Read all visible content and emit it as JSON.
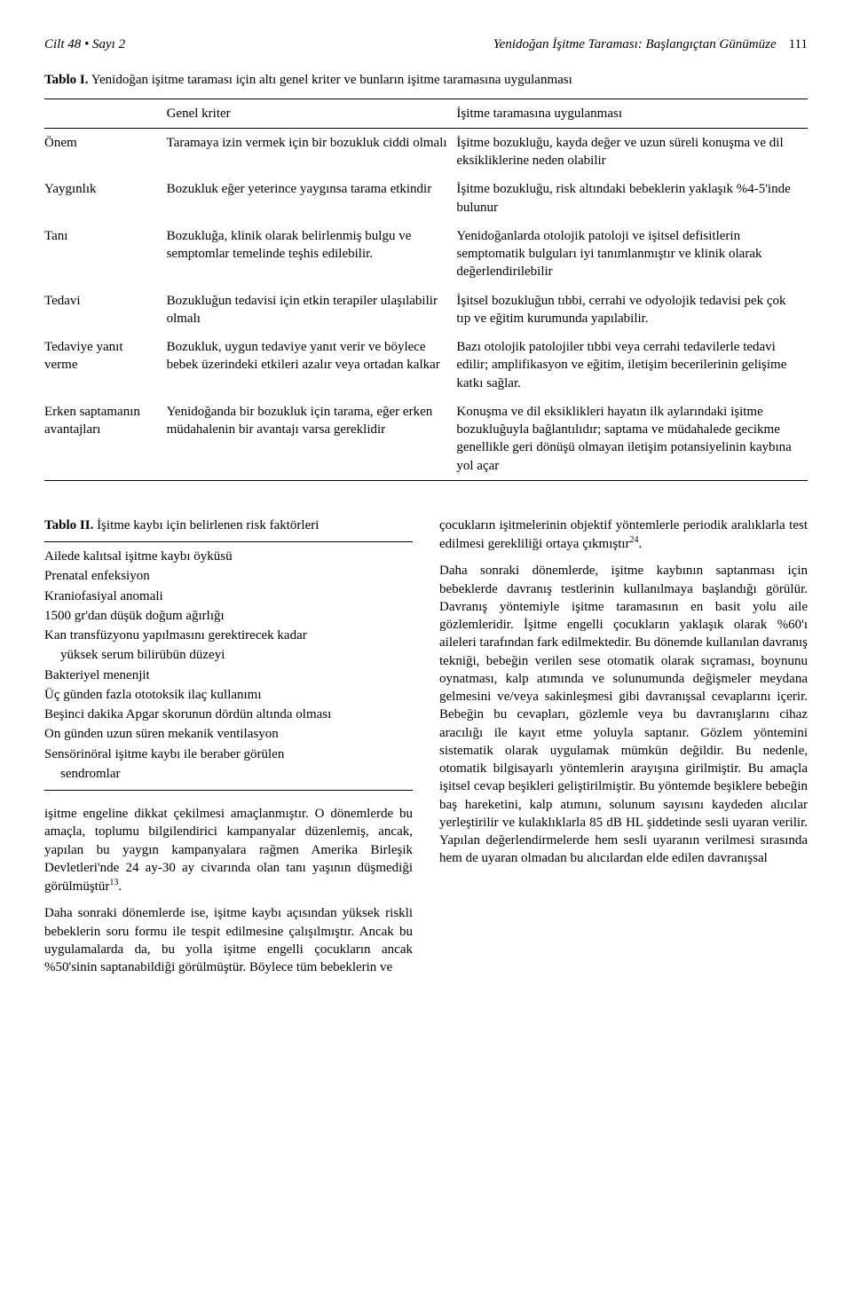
{
  "header": {
    "left": "Cilt 48 • Sayı 2",
    "right_title": "Yenidoğan İşitme Taraması: Başlangıçtan Günümüze",
    "page": "111"
  },
  "table1": {
    "label": "Tablo I.",
    "caption": "Yenidoğan işitme taraması için altı genel kriter ve bunların işitme taramasına uygulanması",
    "head_col1": "Genel kriter",
    "head_col2": "İşitme taramasına uygulanması",
    "rows": [
      {
        "c0": "Önem",
        "c1": "Taramaya izin vermek için bir bozukluk ciddi olmalı",
        "c2": "İşitme bozukluğu, kayda değer ve uzun süreli konuşma ve dil eksikliklerine neden olabilir"
      },
      {
        "c0": "Yaygınlık",
        "c1": "Bozukluk eğer yeterince yaygınsa tarama etkindir",
        "c2": "İşitme bozukluğu, risk altındaki bebeklerin yaklaşık %4-5'inde bulunur"
      },
      {
        "c0": "Tanı",
        "c1": "Bozukluğa, klinik olarak belirlenmiş bulgu ve semptomlar temelinde teşhis edilebilir.",
        "c2": "Yenidoğanlarda otolojik patoloji ve işitsel defisitlerin semptomatik bulguları iyi tanımlanmıştır ve klinik olarak değerlendirilebilir"
      },
      {
        "c0": "Tedavi",
        "c1": "Bozukluğun tedavisi için etkin terapiler ulaşılabilir olmalı",
        "c2": "İşitsel bozukluğun tıbbi, cerrahi ve odyolojik tedavisi pek çok tıp ve eğitim kurumunda yapılabilir."
      },
      {
        "c0": "Tedaviye yanıt verme",
        "c1": "Bozukluk, uygun tedaviye yanıt verir ve böylece bebek üzerindeki etkileri azalır veya ortadan kalkar",
        "c2": "Bazı otolojik patolojiler tıbbi veya cerrahi tedavilerle tedavi edilir; amplifikasyon ve eğitim, iletişim becerilerinin gelişime katkı sağlar."
      },
      {
        "c0": "Erken saptamanın avantajları",
        "c1": "Yenidoğanda bir bozukluk için tarama, eğer erken müdahalenin bir avantajı varsa gereklidir",
        "c2": "Konuşma ve dil eksiklikleri hayatın ilk aylarındaki işitme bozukluğuyla bağlantılıdır; saptama ve müdahalede gecikme genellikle geri dönüşü olmayan iletişim potansiyelinin kaybına yol açar"
      }
    ]
  },
  "table2": {
    "label": "Tablo II.",
    "caption": "İşitme kaybı için belirlenen risk faktörleri",
    "items": [
      "Ailede kalıtsal işitme kaybı öyküsü",
      "Prenatal enfeksiyon",
      "Kraniofasiyal anomali",
      "1500 gr'dan düşük doğum ağırlığı",
      "Kan transfüzyonu yapılmasını gerektirecek kadar",
      "    yüksek serum bilirübün düzeyi",
      "Bakteriyel menenjit",
      "Üç günden fazla ototoksik ilaç kullanımı",
      "Beşinci dakika Apgar skorunun dördün altında olması",
      "On günden uzun süren mekanik ventilasyon",
      "Sensörinöral işitme kaybı ile beraber görülen",
      "    sendromlar"
    ]
  },
  "left_paras": [
    "işitme engeline dikkat çekilmesi amaçlanmıştır. O dönemlerde bu amaçla, toplumu bilgilendirici kampanyalar düzenlemiş, ancak, yapılan bu yaygın kampanyalara rağmen Amerika Birleşik Devletleri'nde 24 ay-30 ay civarında olan tanı yaşının düşmediği görülmüştür",
    "Daha sonraki dönemlerde ise, işitme kaybı açısından yüksek riskli bebeklerin soru formu ile tespit edilmesine çalışılmıştır. Ancak bu uygulamalarda da, bu yolla işitme engelli çocukların ancak %50'sinin saptanabildiği görülmüştür. Böylece tüm bebeklerin ve"
  ],
  "left_ref1": "13",
  "right_paras": [
    "çocukların işitmelerinin objektif yöntemlerle periodik aralıklarla test edilmesi gerekliliği ortaya çıkmıştır",
    "Daha sonraki dönemlerde, işitme kaybının saptanması için bebeklerde davranış testlerinin kullanılmaya başlandığı görülür. Davranış yöntemiyle işitme taramasının en basit yolu aile gözlemleridir. İşitme engelli çocukların yaklaşık olarak %60'ı aileleri tarafından fark edilmektedir. Bu dönemde kullanılan davranış tekniği, bebeğin verilen sese otomatik olarak sıçraması, boynunu oynatması, kalp atımında ve solunumunda değişmeler meydana gelmesini ve/veya sakinleşmesi gibi davranışsal cevaplarını içerir. Bebeğin bu cevapları, gözlemle veya bu davranışlarını cihaz aracılığı ile kayıt etme yoluyla saptanır. Gözlem yöntemini sistematik olarak uygulamak mümkün değildir. Bu nedenle, otomatik bilgisayarlı yöntemlerin arayışına girilmiştir. Bu amaçla işitsel cevap beşikleri geliştirilmiştir. Bu yöntemde beşiklere bebeğin baş hareketini, kalp atımını, solunum sayısını kaydeden alıcılar yerleştirilir ve kulaklıklarla 85 dB HL şiddetinde sesli uyaran verilir. Yapılan değerlendirmelerde hem sesli uyaranın verilmesi sırasında hem de uyaran olmadan bu alıcılardan elde edilen davranışsal"
  ],
  "right_ref1": "24"
}
